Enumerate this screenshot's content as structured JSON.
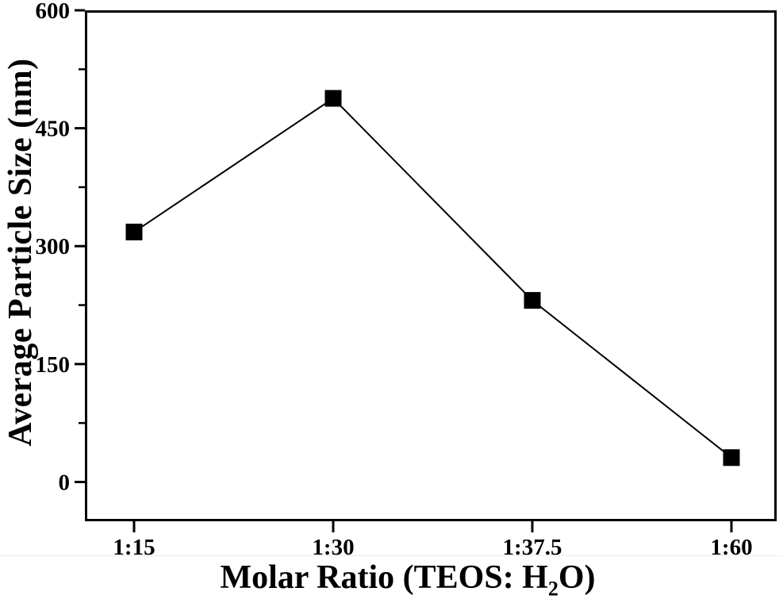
{
  "chart_data": {
    "type": "line",
    "title": "",
    "ylabel": "Average Particle Size (nm)",
    "xlabel": "Molar Ratio (TEOS: H2O)",
    "xlabel_parts": {
      "prefix": "Molar Ratio (TEOS: H",
      "sub": "2",
      "suffix": "O)"
    },
    "categories": [
      "1:15",
      "1:30",
      "1:37.5",
      "1:60"
    ],
    "series": [
      {
        "name": "Average Particle Size (nm)",
        "values": [
          318,
          488,
          231,
          31
        ]
      }
    ],
    "ylim": [
      -50,
      600
    ],
    "y_major_ticks": [
      0,
      150,
      300,
      450,
      600
    ],
    "y_minor_ticks": [
      75,
      225,
      375,
      525
    ],
    "y_tick_labels": [
      "0",
      "150",
      "300",
      "450",
      "600"
    ],
    "marker": "square",
    "marker_size_px": 21,
    "grid": false,
    "legend": "none",
    "colors": {
      "axis": "#000000",
      "line": "#000000",
      "marker": "#000000",
      "text": "#000000",
      "background": "#ffffff"
    }
  }
}
